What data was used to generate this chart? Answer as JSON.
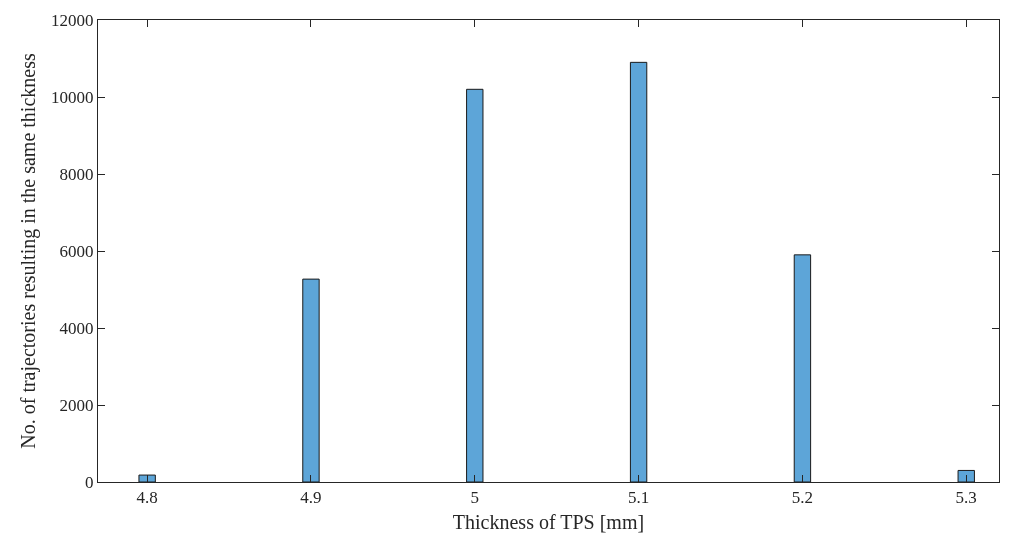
{
  "chart_data": {
    "type": "bar",
    "xlabel": "Thickness of TPS [mm]",
    "ylabel": "No. of trajectories resulting in the same thickness",
    "x": [
      4.8,
      4.9,
      5.0,
      5.1,
      5.2,
      5.3
    ],
    "values": [
      180,
      5270,
      10200,
      10900,
      5900,
      300
    ],
    "color": "#5da5d8",
    "xlim": [
      4.77,
      5.32
    ],
    "xticks": [
      4.8,
      4.9,
      5,
      5.1,
      5.2,
      5.3
    ],
    "ylim": [
      0,
      12000
    ],
    "yticks": [
      0,
      2000,
      4000,
      6000,
      8000,
      10000,
      12000
    ],
    "grid": false
  }
}
